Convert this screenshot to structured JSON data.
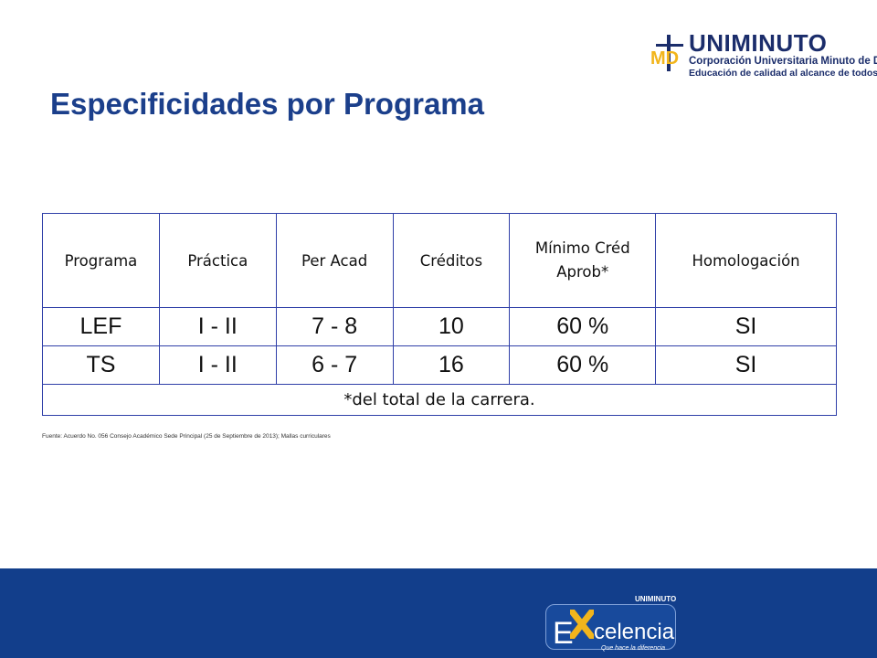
{
  "logo": {
    "mark": "MD",
    "name": "UNIMINUTO",
    "line1": "Corporación Universitaria Minuto de Dios",
    "line2": "Educación de calidad al alcance de todos"
  },
  "title": "Especificidades por Programa",
  "table": {
    "headers": [
      "Programa",
      "Práctica",
      "Per Acad",
      "Créditos",
      "Mínimo Créd Aprob*",
      "Homologación"
    ],
    "header_min_line1": "Mínimo Créd",
    "header_min_line2": "Aprob*",
    "rows": [
      [
        "LEF",
        "I - II",
        "7 - 8",
        "10",
        "60 %",
        "SI"
      ],
      [
        "TS",
        "I - II",
        "6 - 7",
        "16",
        "60 %",
        "SI"
      ]
    ],
    "note": "*del total de la carrera."
  },
  "source": "Fuente: Acuerdo No. 056 Consejo Académico Sede Principal (25 de Septiembre de 2013); Mallas curriculares",
  "footer_logo": {
    "top": "UNIMINUTO",
    "letter_e": "E",
    "word": "celencia",
    "slogan": "Que hace la diferencia"
  },
  "colors": {
    "title": "#1b3f8b",
    "table_border": "#2f3fa8",
    "band": "#123e8b",
    "logo_accent": "#f2b51c"
  }
}
